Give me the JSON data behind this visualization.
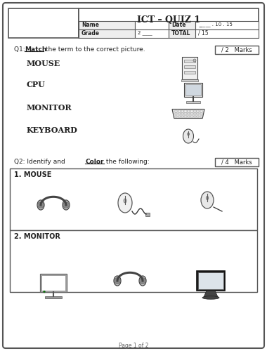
{
  "title": "ICT – QUIZ 1",
  "header": {
    "name_label": "Name",
    "date_label": "Date",
    "date_value": "_____ . 10 . 15",
    "grade_label": "Grade",
    "grade_value": "2 ____",
    "total_label": "TOTAL",
    "total_value": "/ 15"
  },
  "q1": {
    "instruction_pre": "Q1: ",
    "instruction_bold": "Match",
    "instruction_rest": " the term to the correct picture.",
    "marks": "/ 2   Marks",
    "terms": [
      "MOUSE",
      "CPU",
      "MONITOR",
      "KEYBOARD"
    ]
  },
  "q2": {
    "instruction_pre": "Q2: Identify and ",
    "instruction_bold": "Color",
    "instruction_rest": " the following:",
    "marks": "/ 4   Marks",
    "sections": [
      "1. MOUSE",
      "2. MONITOR"
    ]
  },
  "footer": "Page 1 of 2",
  "bg_color": "#ffffff",
  "border_color": "#555555",
  "text_color": "#222222"
}
